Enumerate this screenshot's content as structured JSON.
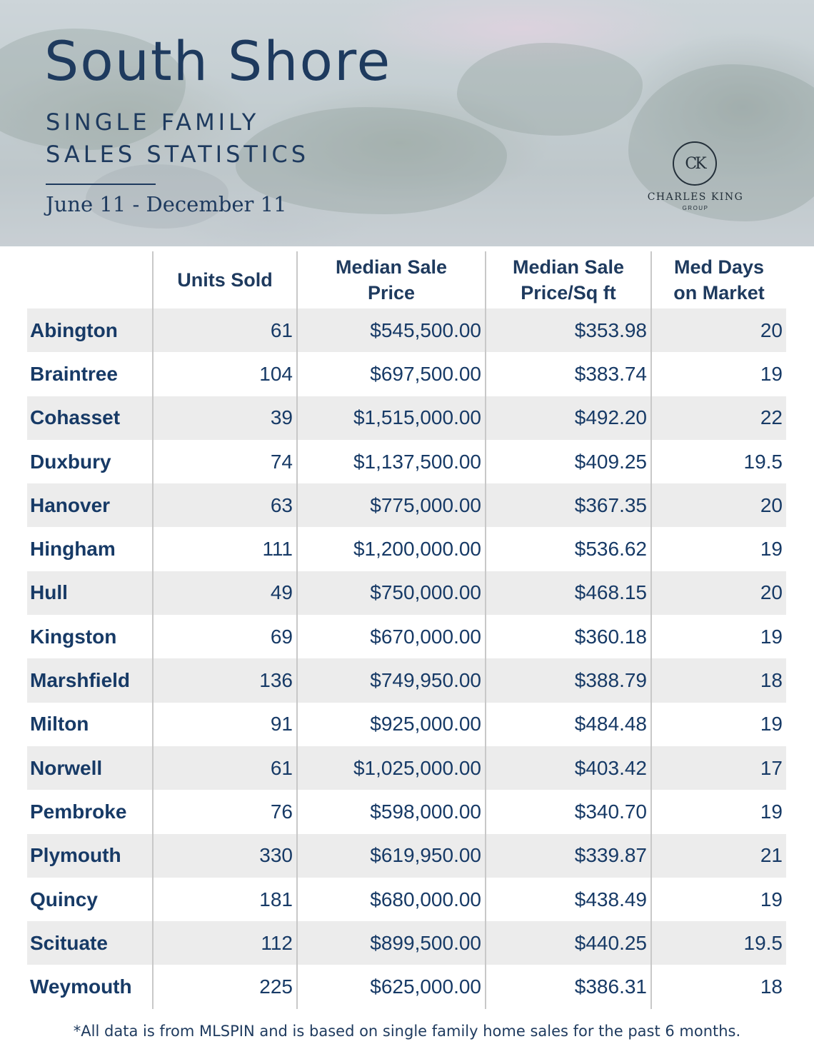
{
  "header": {
    "title": "South Shore",
    "subtitle_line1": "SINGLE FAMILY",
    "subtitle_line2": "SALES STATISTICS",
    "date_range": "June 11 - December 11"
  },
  "logo": {
    "monogram": "CK",
    "name": "CHARLES KING",
    "sub": "GROUP"
  },
  "table": {
    "columns": [
      "",
      "Units Sold",
      "Median Sale Price",
      "Median Sale Price/Sq ft",
      "Med Days on Market"
    ],
    "rows": [
      {
        "town": "Abington",
        "units": "61",
        "price": "$545,500.00",
        "psf": "$353.98",
        "days": "20"
      },
      {
        "town": "Braintree",
        "units": "104",
        "price": "$697,500.00",
        "psf": "$383.74",
        "days": "19"
      },
      {
        "town": "Cohasset",
        "units": "39",
        "price": "$1,515,000.00",
        "psf": "$492.20",
        "days": "22"
      },
      {
        "town": "Duxbury",
        "units": "74",
        "price": "$1,137,500.00",
        "psf": "$409.25",
        "days": "19.5"
      },
      {
        "town": "Hanover",
        "units": "63",
        "price": "$775,000.00",
        "psf": "$367.35",
        "days": "20"
      },
      {
        "town": "Hingham",
        "units": "111",
        "price": "$1,200,000.00",
        "psf": "$536.62",
        "days": "19"
      },
      {
        "town": "Hull",
        "units": "49",
        "price": "$750,000.00",
        "psf": "$468.15",
        "days": "20"
      },
      {
        "town": "Kingston",
        "units": "69",
        "price": "$670,000.00",
        "psf": "$360.18",
        "days": "19"
      },
      {
        "town": "Marshfield",
        "units": "136",
        "price": "$749,950.00",
        "psf": "$388.79",
        "days": "18"
      },
      {
        "town": "Milton",
        "units": "91",
        "price": "$925,000.00",
        "psf": "$484.48",
        "days": "19"
      },
      {
        "town": "Norwell",
        "units": "61",
        "price": "$1,025,000.00",
        "psf": "$403.42",
        "days": "17"
      },
      {
        "town": "Pembroke",
        "units": "76",
        "price": "$598,000.00",
        "psf": "$340.70",
        "days": "19"
      },
      {
        "town": "Plymouth",
        "units": "330",
        "price": "$619,950.00",
        "psf": "$339.87",
        "days": "21"
      },
      {
        "town": "Quincy",
        "units": "181",
        "price": "$680,000.00",
        "psf": "$438.49",
        "days": "19"
      },
      {
        "town": "Scituate",
        "units": "112",
        "price": "$899,500.00",
        "psf": "$440.25",
        "days": "19.5"
      },
      {
        "town": "Weymouth",
        "units": "225",
        "price": "$625,000.00",
        "psf": "$386.31",
        "days": "18"
      }
    ]
  },
  "footnote": "*All data is from MLSPIN and is based on single family home sales for the past 6 months.",
  "colors": {
    "navy_text": "#1e3a5e",
    "row_stripe": "#ececec",
    "divider": "#c8c8c8"
  }
}
